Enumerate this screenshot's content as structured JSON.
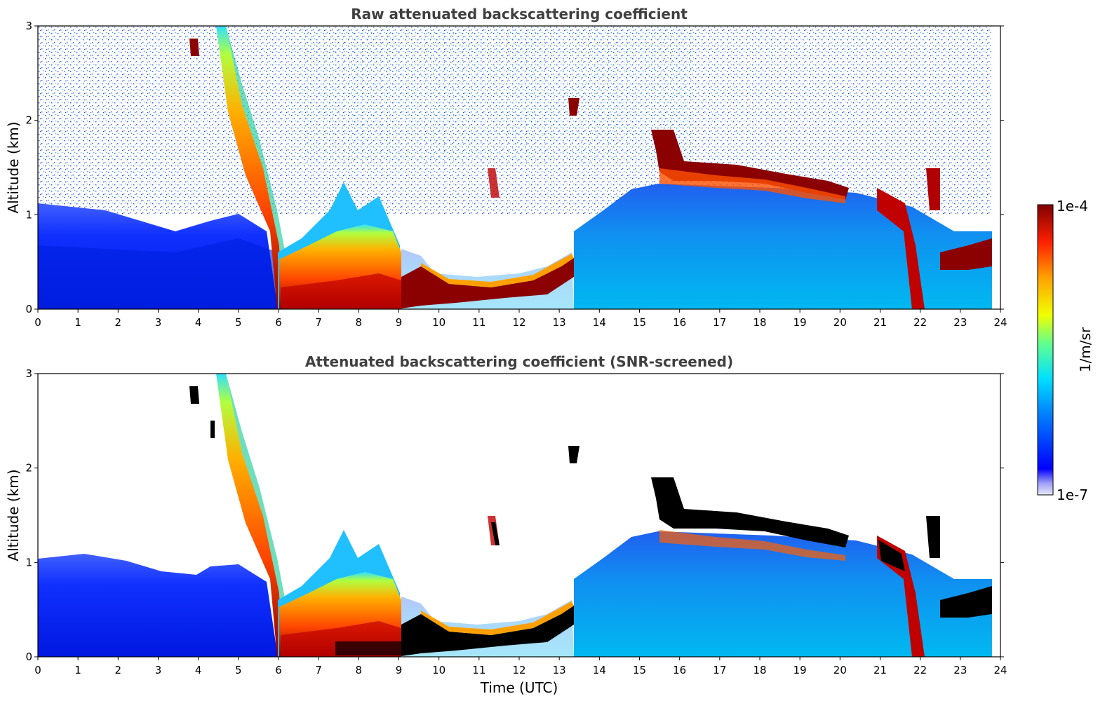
{
  "chart_data": [
    {
      "type": "heatmap",
      "title": "Raw attenuated backscattering coefficient",
      "xlabel": "",
      "ylabel": "Altitude (km)",
      "xlim": [
        0,
        24
      ],
      "ylim": [
        0,
        3
      ],
      "x_ticks": [
        "0",
        "1",
        "2",
        "3",
        "4",
        "5",
        "6",
        "7",
        "8",
        "9",
        "10",
        "11",
        "12",
        "13",
        "14",
        "15",
        "16",
        "17",
        "18",
        "19",
        "20",
        "21",
        "22",
        "23",
        "24"
      ],
      "y_ticks": [
        "0",
        "1",
        "2",
        "3"
      ],
      "colorbar": {
        "label": "1/m/sr",
        "min_label": "1e-7",
        "max_label": "1e-4",
        "scale": "log",
        "colormap": "jet"
      },
      "features": [
        {
          "name": "descending layer",
          "time": [
            4.4,
            6.0
          ],
          "alt_top": [
            3.0,
            0.0
          ],
          "level": "high"
        },
        {
          "name": "morning boundary layer",
          "time": [
            6.0,
            9.0
          ],
          "alt": [
            0.0,
            1.2
          ],
          "level": "high"
        },
        {
          "name": "low cloud",
          "time": [
            9.0,
            13.4
          ],
          "alt": [
            0.1,
            0.5
          ],
          "level": "very high"
        },
        {
          "name": "elevated cloud",
          "time": [
            15.5,
            20.2
          ],
          "alt": [
            1.2,
            1.8
          ],
          "level": "very high"
        },
        {
          "name": "evening cloud",
          "time": [
            22.7,
            23.8
          ],
          "alt": [
            0.4,
            0.6
          ],
          "level": "very high"
        }
      ]
    },
    {
      "type": "heatmap",
      "title": "Attenuated backscattering coefficient (SNR-screened)",
      "xlabel": "Time (UTC)",
      "ylabel": "Altitude (km)",
      "xlim": [
        0,
        24
      ],
      "ylim": [
        0,
        3
      ],
      "x_ticks": [
        "0",
        "1",
        "2",
        "3",
        "4",
        "5",
        "6",
        "7",
        "8",
        "9",
        "10",
        "11",
        "12",
        "13",
        "14",
        "15",
        "16",
        "17",
        "18",
        "19",
        "20",
        "21",
        "22",
        "23",
        "24"
      ],
      "y_ticks": [
        "0",
        "1",
        "2",
        "3"
      ],
      "colorbar": {
        "label": "1/m/sr",
        "min_label": "1e-7",
        "max_label": "1e-4",
        "scale": "log",
        "colormap": "jet"
      },
      "features": [
        {
          "name": "descending layer",
          "time": [
            4.4,
            6.0
          ],
          "alt_top": [
            3.0,
            0.0
          ],
          "level": "high"
        },
        {
          "name": "morning boundary layer",
          "time": [
            6.0,
            9.0
          ],
          "alt": [
            0.0,
            1.2
          ],
          "level": "high"
        },
        {
          "name": "low cloud",
          "time": [
            9.0,
            13.4
          ],
          "alt": [
            0.1,
            0.5
          ],
          "level": "saturated"
        },
        {
          "name": "elevated cloud",
          "time": [
            15.5,
            20.2
          ],
          "alt": [
            1.2,
            1.8
          ],
          "level": "saturated"
        },
        {
          "name": "evening cloud",
          "time": [
            22.7,
            23.8
          ],
          "alt": [
            0.4,
            0.6
          ],
          "level": "saturated"
        }
      ]
    }
  ]
}
